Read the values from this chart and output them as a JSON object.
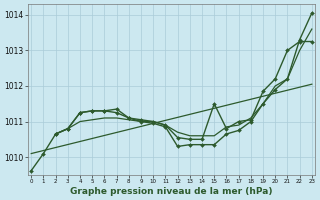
{
  "xlabel": "Graphe pression niveau de la mer (hPa)",
  "bg_color": "#cce8f0",
  "grid_color": "#aaccd8",
  "line_color": "#2d5a2d",
  "ylim": [
    1009.5,
    1014.3
  ],
  "xlim": [
    -0.3,
    23.3
  ],
  "yticks": [
    1010,
    1011,
    1012,
    1013,
    1014
  ],
  "xticks": [
    0,
    1,
    2,
    3,
    4,
    5,
    6,
    7,
    8,
    9,
    10,
    11,
    12,
    13,
    14,
    15,
    16,
    17,
    18,
    19,
    20,
    21,
    22,
    23
  ],
  "series": [
    {
      "x": [
        0,
        1,
        2,
        3,
        4,
        5,
        6,
        7,
        8,
        9,
        10,
        11,
        12,
        13,
        14,
        15,
        16,
        17,
        18,
        19,
        20,
        21,
        22,
        23
      ],
      "y": [
        1009.62,
        1010.1,
        1010.65,
        1010.8,
        1011.25,
        1011.3,
        1011.3,
        1011.25,
        1011.1,
        1011.0,
        1010.95,
        1010.85,
        1010.3,
        1010.35,
        1010.35,
        1010.35,
        1010.65,
        1010.75,
        1011.0,
        1011.5,
        1011.9,
        1012.2,
        1013.3,
        1014.05
      ],
      "markers": true,
      "lw": 1.0
    },
    {
      "x": [
        2,
        3,
        4,
        5,
        6,
        7,
        8,
        9,
        10,
        11,
        12,
        13,
        14,
        15,
        16,
        17,
        18,
        19,
        20,
        21,
        22,
        23
      ],
      "y": [
        1010.65,
        1010.8,
        1011.25,
        1011.3,
        1011.3,
        1011.35,
        1011.1,
        1011.05,
        1011.0,
        1010.9,
        1010.55,
        1010.5,
        1010.5,
        1011.5,
        1010.8,
        1011.0,
        1011.05,
        1011.85,
        1012.2,
        1013.0,
        1013.25,
        1013.25
      ],
      "markers": true,
      "lw": 1.0
    },
    {
      "x": [
        2,
        3,
        4,
        5,
        6,
        7,
        8,
        9,
        10,
        11,
        12,
        13,
        14,
        15,
        16,
        17,
        18,
        19,
        20,
        21,
        22,
        23
      ],
      "y": [
        1010.65,
        1010.8,
        1011.0,
        1011.05,
        1011.1,
        1011.1,
        1011.05,
        1011.0,
        1011.0,
        1010.9,
        1010.7,
        1010.6,
        1010.6,
        1010.6,
        1010.85,
        1010.9,
        1011.1,
        1011.5,
        1012.0,
        1012.2,
        1013.0,
        1013.6
      ],
      "markers": false,
      "lw": 0.9
    },
    {
      "x": [
        0,
        23
      ],
      "y": [
        1010.1,
        1012.05
      ],
      "markers": false,
      "lw": 0.9
    }
  ]
}
